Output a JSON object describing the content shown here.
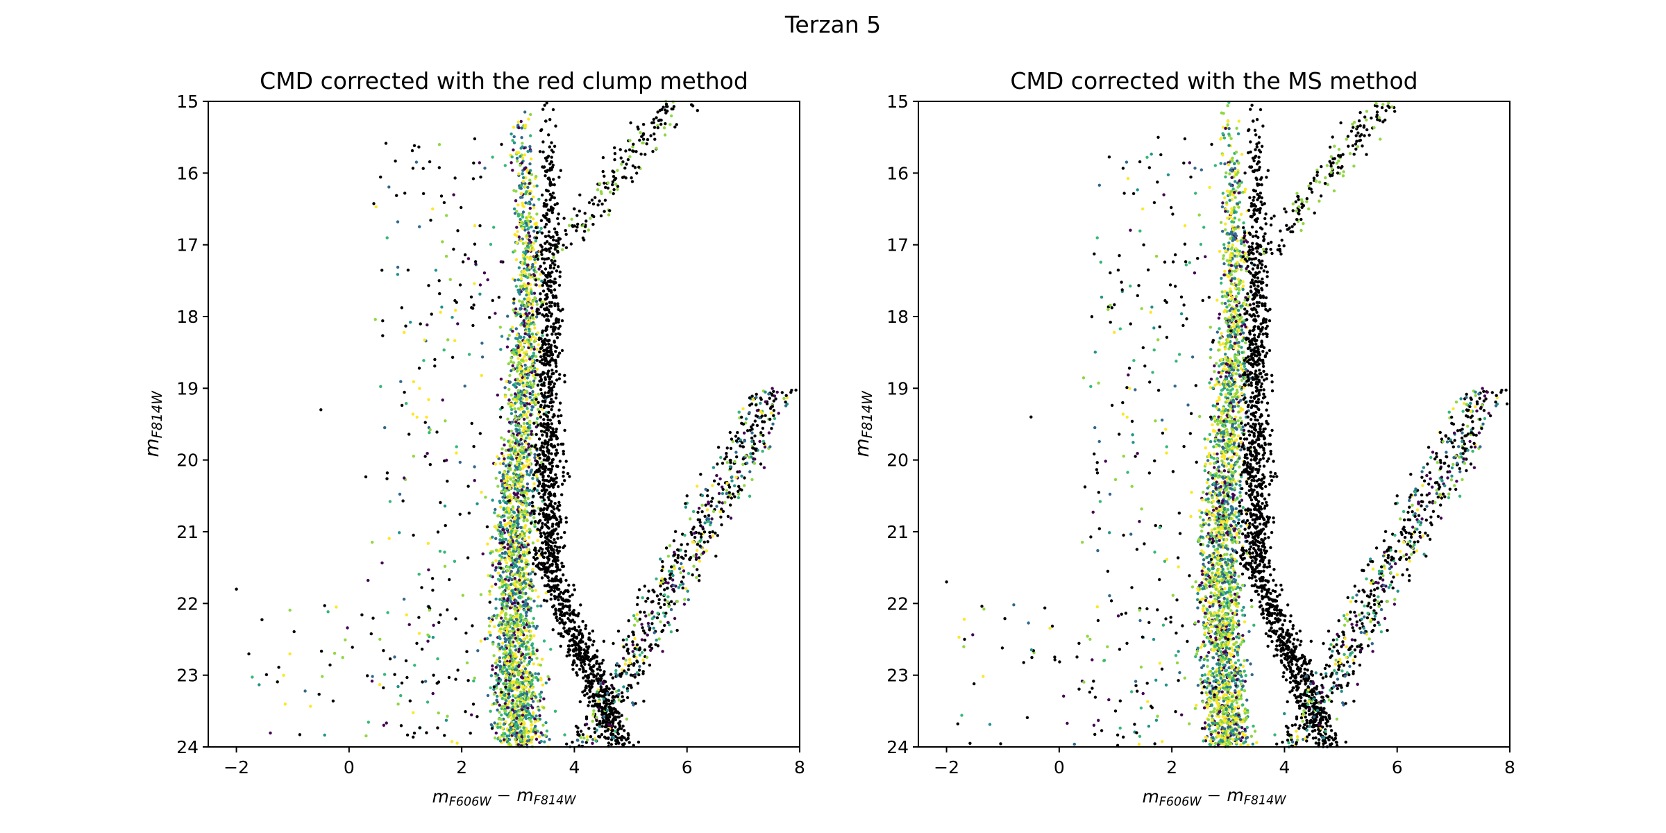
{
  "figure": {
    "suptitle": "Terzan 5"
  },
  "chart_data": [
    {
      "type": "scatter",
      "title": "CMD corrected with the red clump method",
      "xlabel": "m_F606W - m_F814W",
      "ylabel": "m_F814W",
      "xlim": [
        -2.5,
        8
      ],
      "ylim": [
        24,
        15
      ],
      "y_inverted": true,
      "xticks": [
        -2,
        0,
        2,
        4,
        6,
        8
      ],
      "yticks": [
        15,
        16,
        17,
        18,
        19,
        20,
        21,
        22,
        23,
        24
      ],
      "colormap": [
        "#440154",
        "#31688e",
        "#21918c",
        "#35b779",
        "#90d743",
        "#fde725",
        "#000000"
      ],
      "series": [
        {
          "values": [
            {
              "x": 3.0,
              "y": 22.0
            },
            {
              "x": 3.1,
              "y": 20.5
            },
            {
              "x": 3.05,
              "y": 18.0
            },
            {
              "x": 3.2,
              "y": 16.0
            },
            {
              "x": 3.6,
              "y": 19.0
            },
            {
              "x": 3.7,
              "y": 21.5
            },
            {
              "x": 4.5,
              "y": 23.0
            },
            {
              "x": 5.5,
              "y": 22.0
            },
            {
              "x": 6.0,
              "y": 20.5
            },
            {
              "x": 7.0,
              "y": 19.5
            },
            {
              "x": 4.0,
              "y": 16.5
            },
            {
              "x": 5.0,
              "y": 15.3
            },
            {
              "x": -2.0,
              "y": 21.8
            },
            {
              "x": -0.5,
              "y": 19.3
            },
            {
              "x": 1.5,
              "y": 23.0
            },
            {
              "x": 1.6,
              "y": 17.5
            }
          ]
        }
      ]
    },
    {
      "type": "scatter",
      "title": "CMD corrected with the MS method",
      "xlabel": "m_F606W - m_F814W",
      "ylabel": "m_F814W",
      "xlim": [
        -2.5,
        8
      ],
      "ylim": [
        24,
        15
      ],
      "y_inverted": true,
      "xticks": [
        -2,
        0,
        2,
        4,
        6,
        8
      ],
      "yticks": [
        15,
        16,
        17,
        18,
        19,
        20,
        21,
        22,
        23,
        24
      ],
      "colormap": [
        "#440154",
        "#31688e",
        "#21918c",
        "#35b779",
        "#90d743",
        "#fde725",
        "#000000"
      ],
      "series": [
        {
          "values": [
            {
              "x": 3.0,
              "y": 22.5
            },
            {
              "x": 3.0,
              "y": 20.5
            },
            {
              "x": 3.05,
              "y": 18.2
            },
            {
              "x": 3.3,
              "y": 16.0
            },
            {
              "x": 3.6,
              "y": 19.5
            },
            {
              "x": 3.7,
              "y": 22.0
            },
            {
              "x": 4.5,
              "y": 23.0
            },
            {
              "x": 5.5,
              "y": 22.0
            },
            {
              "x": 6.0,
              "y": 20.5
            },
            {
              "x": 7.0,
              "y": 19.5
            },
            {
              "x": 4.0,
              "y": 16.5
            },
            {
              "x": 5.0,
              "y": 15.3
            },
            {
              "x": -2.0,
              "y": 21.7
            },
            {
              "x": -0.5,
              "y": 19.4
            },
            {
              "x": 1.0,
              "y": 23.5
            },
            {
              "x": 1.5,
              "y": 17.0
            }
          ]
        }
      ]
    }
  ]
}
